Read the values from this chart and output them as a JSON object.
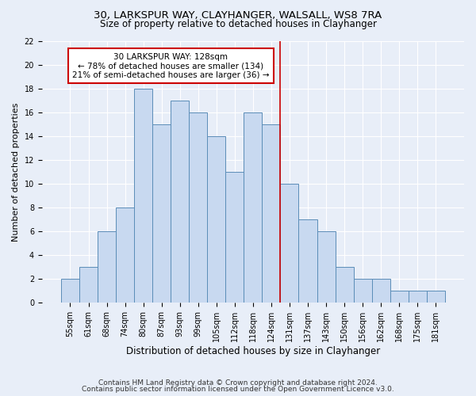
{
  "title1": "30, LARKSPUR WAY, CLAYHANGER, WALSALL, WS8 7RA",
  "title2": "Size of property relative to detached houses in Clayhanger",
  "xlabel": "Distribution of detached houses by size in Clayhanger",
  "ylabel": "Number of detached properties",
  "categories": [
    "55sqm",
    "61sqm",
    "68sqm",
    "74sqm",
    "80sqm",
    "87sqm",
    "93sqm",
    "99sqm",
    "105sqm",
    "112sqm",
    "118sqm",
    "124sqm",
    "131sqm",
    "137sqm",
    "143sqm",
    "150sqm",
    "156sqm",
    "162sqm",
    "168sqm",
    "175sqm",
    "181sqm"
  ],
  "values": [
    2,
    3,
    6,
    8,
    18,
    15,
    17,
    16,
    14,
    11,
    16,
    15,
    10,
    7,
    6,
    3,
    2,
    2,
    1,
    1,
    1
  ],
  "bar_color": "#c8d9f0",
  "bar_edge_color": "#5b8db8",
  "property_line_bin": 12,
  "annotation_line1": "30 LARKSPUR WAY: 128sqm",
  "annotation_line2": "← 78% of detached houses are smaller (134)",
  "annotation_line3": "21% of semi-detached houses are larger (36) →",
  "annotation_box_color": "#ffffff",
  "annotation_box_edge_color": "#cc0000",
  "vline_color": "#cc0000",
  "ylim": [
    0,
    22
  ],
  "yticks": [
    0,
    2,
    4,
    6,
    8,
    10,
    12,
    14,
    16,
    18,
    20,
    22
  ],
  "footer1": "Contains HM Land Registry data © Crown copyright and database right 2024.",
  "footer2": "Contains public sector information licensed under the Open Government Licence v3.0.",
  "background_color": "#e8eef8",
  "plot_background_color": "#e8eef8",
  "grid_color": "#ffffff",
  "title1_fontsize": 9.5,
  "title2_fontsize": 8.5,
  "ylabel_fontsize": 8,
  "xlabel_fontsize": 8.5,
  "tick_fontsize": 7,
  "annotation_fontsize": 7.5,
  "footer_fontsize": 6.5
}
